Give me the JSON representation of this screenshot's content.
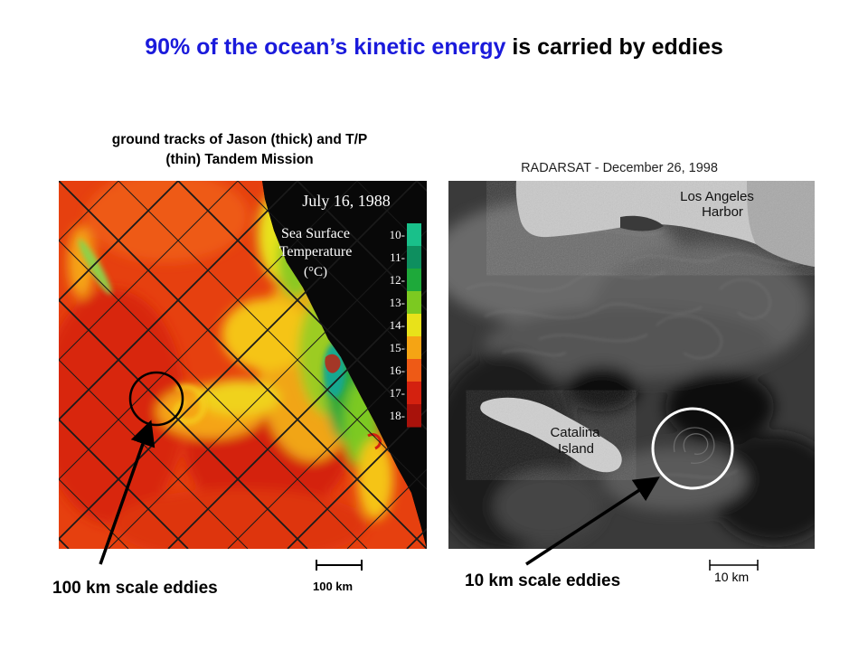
{
  "slide": {
    "title_highlight": "90% of the ocean’s kinetic energy",
    "title_rest": " is carried by eddies"
  },
  "left_panel": {
    "caption_line1": "ground tracks of Jason (thick) and T/P",
    "caption_line2": "(thin) Tandem Mission",
    "map_date": "July 16, 1988",
    "legend_title_line1": "Sea Surface",
    "legend_title_line2": "Temperature",
    "legend_title_line3": "(°C)",
    "legend_ticks": [
      "10-",
      "11-",
      "12-",
      "13-",
      "14-",
      "15-",
      "16-",
      "17-",
      "18-"
    ],
    "legend_colors": [
      "#19c08a",
      "#0e8f5f",
      "#1ea93a",
      "#7cc921",
      "#e8e21a",
      "#f5a414",
      "#ee5a16",
      "#d4210f",
      "#a8120b"
    ],
    "annotation": "100 km scale eddies",
    "scale_label": "100 km"
  },
  "right_panel": {
    "caption": "RADARSAT - December 26, 1998",
    "place_label_1_line1": "Los Angeles",
    "place_label_1_line2": "Harbor",
    "place_label_2_line1": "Catalina",
    "place_label_2_line2": "Island",
    "annotation": "10 km scale eddies",
    "scale_label": "10 km"
  }
}
